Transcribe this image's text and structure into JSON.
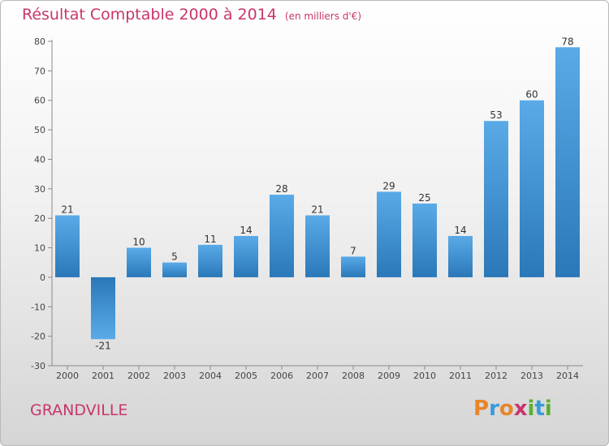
{
  "header": {
    "title": "Résultat Comptable 2000 à 2014",
    "subtitle": "(en milliers d'€)"
  },
  "footer": {
    "place": "GRANDVILLE",
    "brand": "Proxiti"
  },
  "colors": {
    "title": "#c9356c",
    "bar_light": "#5aaae8",
    "bar_dark": "#2a78b8",
    "brand_letters": [
      "#e8852a",
      "#3a9ad8",
      "#e8852a",
      "#c9356c",
      "#5bb030",
      "#3a9ad8",
      "#5bb030"
    ]
  },
  "chart_data": {
    "type": "bar",
    "title": "Résultat Comptable 2000 à 2014",
    "subtitle": "(en milliers d'€)",
    "categories": [
      "2000",
      "2001",
      "2002",
      "2003",
      "2004",
      "2005",
      "2006",
      "2007",
      "2008",
      "2009",
      "2010",
      "2011",
      "2012",
      "2013",
      "2014"
    ],
    "values": [
      21,
      -21,
      10,
      5,
      11,
      14,
      28,
      21,
      7,
      29,
      25,
      14,
      53,
      60,
      78
    ],
    "ylim": [
      -30,
      80
    ],
    "yticks": [
      -30,
      -20,
      -10,
      0,
      10,
      20,
      30,
      40,
      50,
      60,
      70,
      80
    ],
    "grid": false,
    "xlabel": "",
    "ylabel": ""
  }
}
